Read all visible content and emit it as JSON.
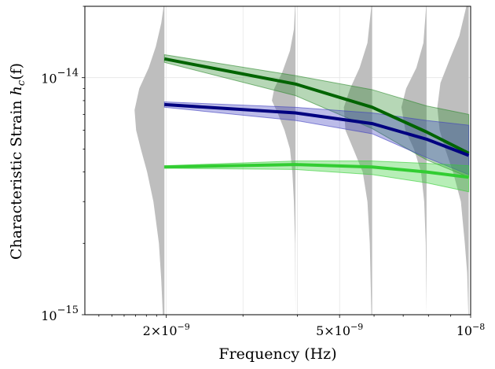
{
  "chart_data": {
    "type": "line",
    "title": "",
    "xlabel": "Frequency (Hz)",
    "ylabel": "Characteristic Strain h_c(f)",
    "ylabel_prefix": "Characteristic Strain ",
    "ylabel_symbol": "h",
    "ylabel_subscript": "c",
    "ylabel_suffix": "(f)",
    "xscale": "log",
    "yscale": "log",
    "xlim": [
      1.3e-09,
      1e-08
    ],
    "ylim": [
      1e-15,
      2e-14
    ],
    "xticks": [
      {
        "value": 2e-09,
        "mantissa": "2",
        "exponent": "−9"
      },
      {
        "value": 5e-09,
        "mantissa": "5",
        "exponent": "−9"
      },
      {
        "value": 1e-08,
        "mantissa": "",
        "exponent": "−8"
      }
    ],
    "yticks": [
      {
        "value": 1e-14,
        "exponent": "−14"
      },
      {
        "value": 1e-15,
        "exponent": "−15"
      }
    ],
    "grid": true,
    "x": [
      1.98e-09,
      3.96e-09,
      5.94e-09,
      7.92e-09,
      9.9e-09
    ],
    "series": [
      {
        "name": "dark green",
        "color": "#006400",
        "band_color": "#2e8b2e",
        "values": [
          1.2e-14,
          9.4e-15,
          7.5e-15,
          5.9e-15,
          4.8e-15
        ],
        "lower": [
          1.16e-14,
          8.4e-15,
          6.1e-15,
          4.5e-15,
          3.8e-15
        ],
        "upper": [
          1.25e-14,
          1.02e-14,
          8.9e-15,
          7.6e-15,
          7e-15
        ]
      },
      {
        "name": "navy",
        "color": "#000080",
        "band_color": "#4040c0",
        "values": [
          7.7e-15,
          7.1e-15,
          6.4e-15,
          5.5e-15,
          4.7e-15
        ],
        "lower": [
          7.5e-15,
          6.6e-15,
          5.8e-15,
          4.6e-15,
          3.9e-15
        ],
        "upper": [
          7.9e-15,
          7.5e-15,
          7.1e-15,
          6.6e-15,
          6.3e-15
        ]
      },
      {
        "name": "lime green",
        "color": "#32cd32",
        "band_color": "#32cd32",
        "values": [
          4.2e-15,
          4.3e-15,
          4.2e-15,
          4e-15,
          3.8e-15
        ],
        "lower": [
          4.15e-15,
          4.1e-15,
          3.9e-15,
          3.6e-15,
          3.3e-15
        ],
        "upper": [
          4.25e-15,
          4.45e-15,
          4.45e-15,
          4.35e-15,
          4.25e-15
        ]
      }
    ],
    "violins": [
      {
        "x": 1.98e-09,
        "color": "#bebebe",
        "profile": [
          [
            1e-15,
            0.02
          ],
          [
            1.4e-15,
            0.04
          ],
          [
            2e-15,
            0.07
          ],
          [
            3e-15,
            0.14
          ],
          [
            4e-15,
            0.22
          ],
          [
            5e-15,
            0.3
          ],
          [
            6e-15,
            0.36
          ],
          [
            7.3e-15,
            0.38
          ],
          [
            9e-15,
            0.32
          ],
          [
            1.1e-14,
            0.2
          ],
          [
            1.35e-14,
            0.11
          ],
          [
            1.7e-14,
            0.04
          ],
          [
            2e-14,
            0.01
          ]
        ]
      },
      {
        "x": 3.96e-09,
        "color": "#bebebe",
        "profile": [
          [
            1e-15,
            0.0
          ],
          [
            2e-15,
            0.005
          ],
          [
            3e-15,
            0.02
          ],
          [
            4e-15,
            0.04
          ],
          [
            5e-15,
            0.07
          ],
          [
            6e-15,
            0.14
          ],
          [
            7e-15,
            0.22
          ],
          [
            8e-15,
            0.3
          ],
          [
            9e-15,
            0.27
          ],
          [
            1.05e-14,
            0.17
          ],
          [
            1.3e-14,
            0.07
          ],
          [
            1.6e-14,
            0.02
          ],
          [
            2e-14,
            0.005
          ]
        ]
      },
      {
        "x": 5.94e-09,
        "color": "#bebebe",
        "profile": [
          [
            1e-15,
            0.01
          ],
          [
            2e-15,
            0.03
          ],
          [
            3e-15,
            0.06
          ],
          [
            4e-15,
            0.12
          ],
          [
            5e-15,
            0.24
          ],
          [
            6e-15,
            0.34
          ],
          [
            7.5e-15,
            0.36
          ],
          [
            9e-15,
            0.28
          ],
          [
            1.1e-14,
            0.16
          ],
          [
            1.4e-14,
            0.06
          ],
          [
            2e-14,
            0.01
          ]
        ]
      },
      {
        "x": 7.92e-09,
        "color": "#bebebe",
        "profile": [
          [
            1e-15,
            0.0
          ],
          [
            2e-15,
            0.01
          ],
          [
            3e-15,
            0.03
          ],
          [
            4e-15,
            0.07
          ],
          [
            5e-15,
            0.16
          ],
          [
            6e-15,
            0.27
          ],
          [
            7.5e-15,
            0.32
          ],
          [
            9e-15,
            0.26
          ],
          [
            1.1e-14,
            0.13
          ],
          [
            1.4e-14,
            0.04
          ],
          [
            2e-14,
            0.005
          ]
        ]
      },
      {
        "x": 9.9e-09,
        "color": "#bebebe",
        "profile": [
          [
            1e-15,
            0.005
          ],
          [
            1.5e-15,
            0.02
          ],
          [
            2e-15,
            0.05
          ],
          [
            3e-15,
            0.1
          ],
          [
            4e-15,
            0.2
          ],
          [
            5e-15,
            0.3
          ],
          [
            6e-15,
            0.37
          ],
          [
            7.5e-15,
            0.4
          ],
          [
            9.5e-15,
            0.36
          ],
          [
            1.2e-14,
            0.24
          ],
          [
            1.5e-14,
            0.12
          ],
          [
            2e-14,
            0.03
          ]
        ]
      }
    ]
  }
}
